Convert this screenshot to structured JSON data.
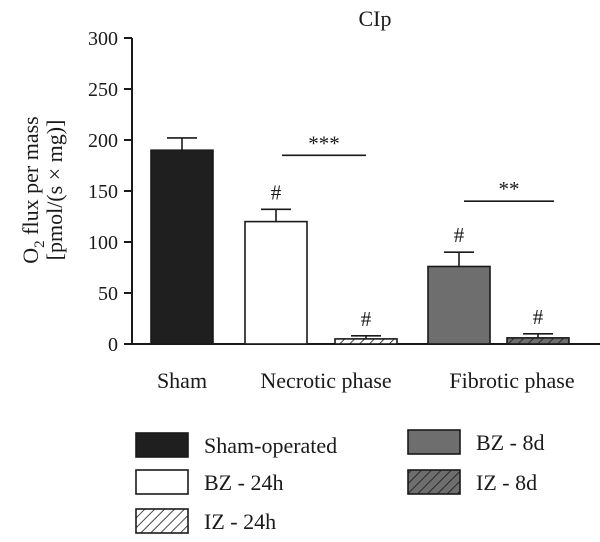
{
  "chart_data": {
    "type": "bar",
    "title": "CIp",
    "ylabel_line1_main": "O",
    "ylabel_line1_sub": "2",
    "ylabel_line1_rest": " flux per mass",
    "ylabel_line2": "[pmol/(s × mg)]",
    "ylim": [
      0,
      300
    ],
    "yticks": [
      0,
      50,
      100,
      150,
      200,
      250,
      300
    ],
    "groups": [
      "Sham",
      "Necrotic phase",
      "Fibrotic phase"
    ],
    "bars": [
      {
        "series": "Sham-operated",
        "group": "Sham",
        "value": 190,
        "error": 12,
        "mark": ""
      },
      {
        "series": "BZ - 24h",
        "group": "Necrotic phase",
        "value": 120,
        "error": 12,
        "mark": "#"
      },
      {
        "series": "IZ - 24h",
        "group": "Necrotic phase",
        "value": 5,
        "error": 3,
        "mark": "#"
      },
      {
        "series": "BZ - 8d",
        "group": "Fibrotic phase",
        "value": 76,
        "error": 14,
        "mark": "#"
      },
      {
        "series": "IZ - 8d",
        "group": "Fibrotic phase",
        "value": 6,
        "error": 4,
        "mark": "#"
      }
    ],
    "comparisons": [
      {
        "group": "Necrotic phase",
        "label": "***",
        "y": 185
      },
      {
        "group": "Fibrotic phase",
        "label": "**",
        "y": 140
      }
    ],
    "legend": [
      {
        "label": "Sham-operated",
        "style": "solid-black"
      },
      {
        "label": "BZ - 24h",
        "style": "white"
      },
      {
        "label": "IZ - 24h",
        "style": "hatch-white"
      },
      {
        "label": "BZ - 8d",
        "style": "solid-gray"
      },
      {
        "label": "IZ - 8d",
        "style": "hatch-gray"
      }
    ],
    "legend_placement": "bottom",
    "grid": false,
    "colors": {
      "black": "#1f1f1f",
      "gray": "#6e6e6e",
      "white": "#ffffff",
      "hatch_on_gray": "#2b2b2b"
    }
  }
}
